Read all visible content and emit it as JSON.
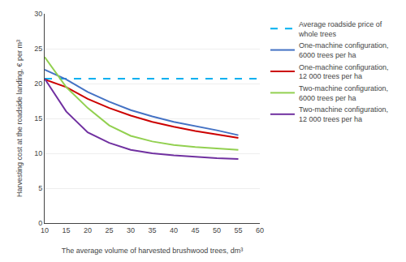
{
  "chart_data": {
    "type": "line",
    "x": [
      10,
      15,
      20,
      25,
      30,
      35,
      40,
      45,
      50,
      55
    ],
    "xlabel": "The average volume of harvested brushwood trees, dm³",
    "ylabel": "Harvesting cost at the roadside landing, € per m³",
    "series": [
      {
        "name": "Average roadside price of\nwhole trees",
        "color": "#00B0F0",
        "line_style": "dashed",
        "x": [
          10,
          60
        ],
        "values": [
          20.7,
          20.7
        ]
      },
      {
        "name": "One-machine configuration,\n6000 trees per ha",
        "color": "#4472C4",
        "line_style": "solid",
        "values": [
          22.0,
          20.6,
          18.8,
          17.4,
          16.2,
          15.3,
          14.5,
          13.9,
          13.3,
          12.6
        ]
      },
      {
        "name": "One-machine configuration,\n12 000 trees per ha",
        "color": "#CC0000",
        "line_style": "solid",
        "values": [
          20.6,
          19.5,
          17.8,
          16.5,
          15.4,
          14.5,
          13.8,
          13.2,
          12.7,
          12.2
        ]
      },
      {
        "name": "Two-machine configuration,\n6000 trees per ha",
        "color": "#92D050",
        "line_style": "solid",
        "values": [
          23.8,
          19.5,
          16.5,
          14.0,
          12.5,
          11.7,
          11.2,
          10.9,
          10.7,
          10.5
        ]
      },
      {
        "name": "Two-machine configuration,\n12 000 trees per ha",
        "color": "#7030A0",
        "line_style": "solid",
        "values": [
          20.7,
          16.0,
          13.0,
          11.5,
          10.5,
          10.0,
          9.7,
          9.5,
          9.3,
          9.2
        ]
      }
    ],
    "xlim": [
      10,
      60
    ],
    "ylim": [
      0,
      30
    ],
    "xticks": [
      10,
      15,
      20,
      25,
      30,
      35,
      40,
      45,
      50,
      55,
      60
    ],
    "yticks": [
      0,
      5,
      10,
      15,
      20,
      25,
      30
    ],
    "grid": "y",
    "legend": "right"
  }
}
